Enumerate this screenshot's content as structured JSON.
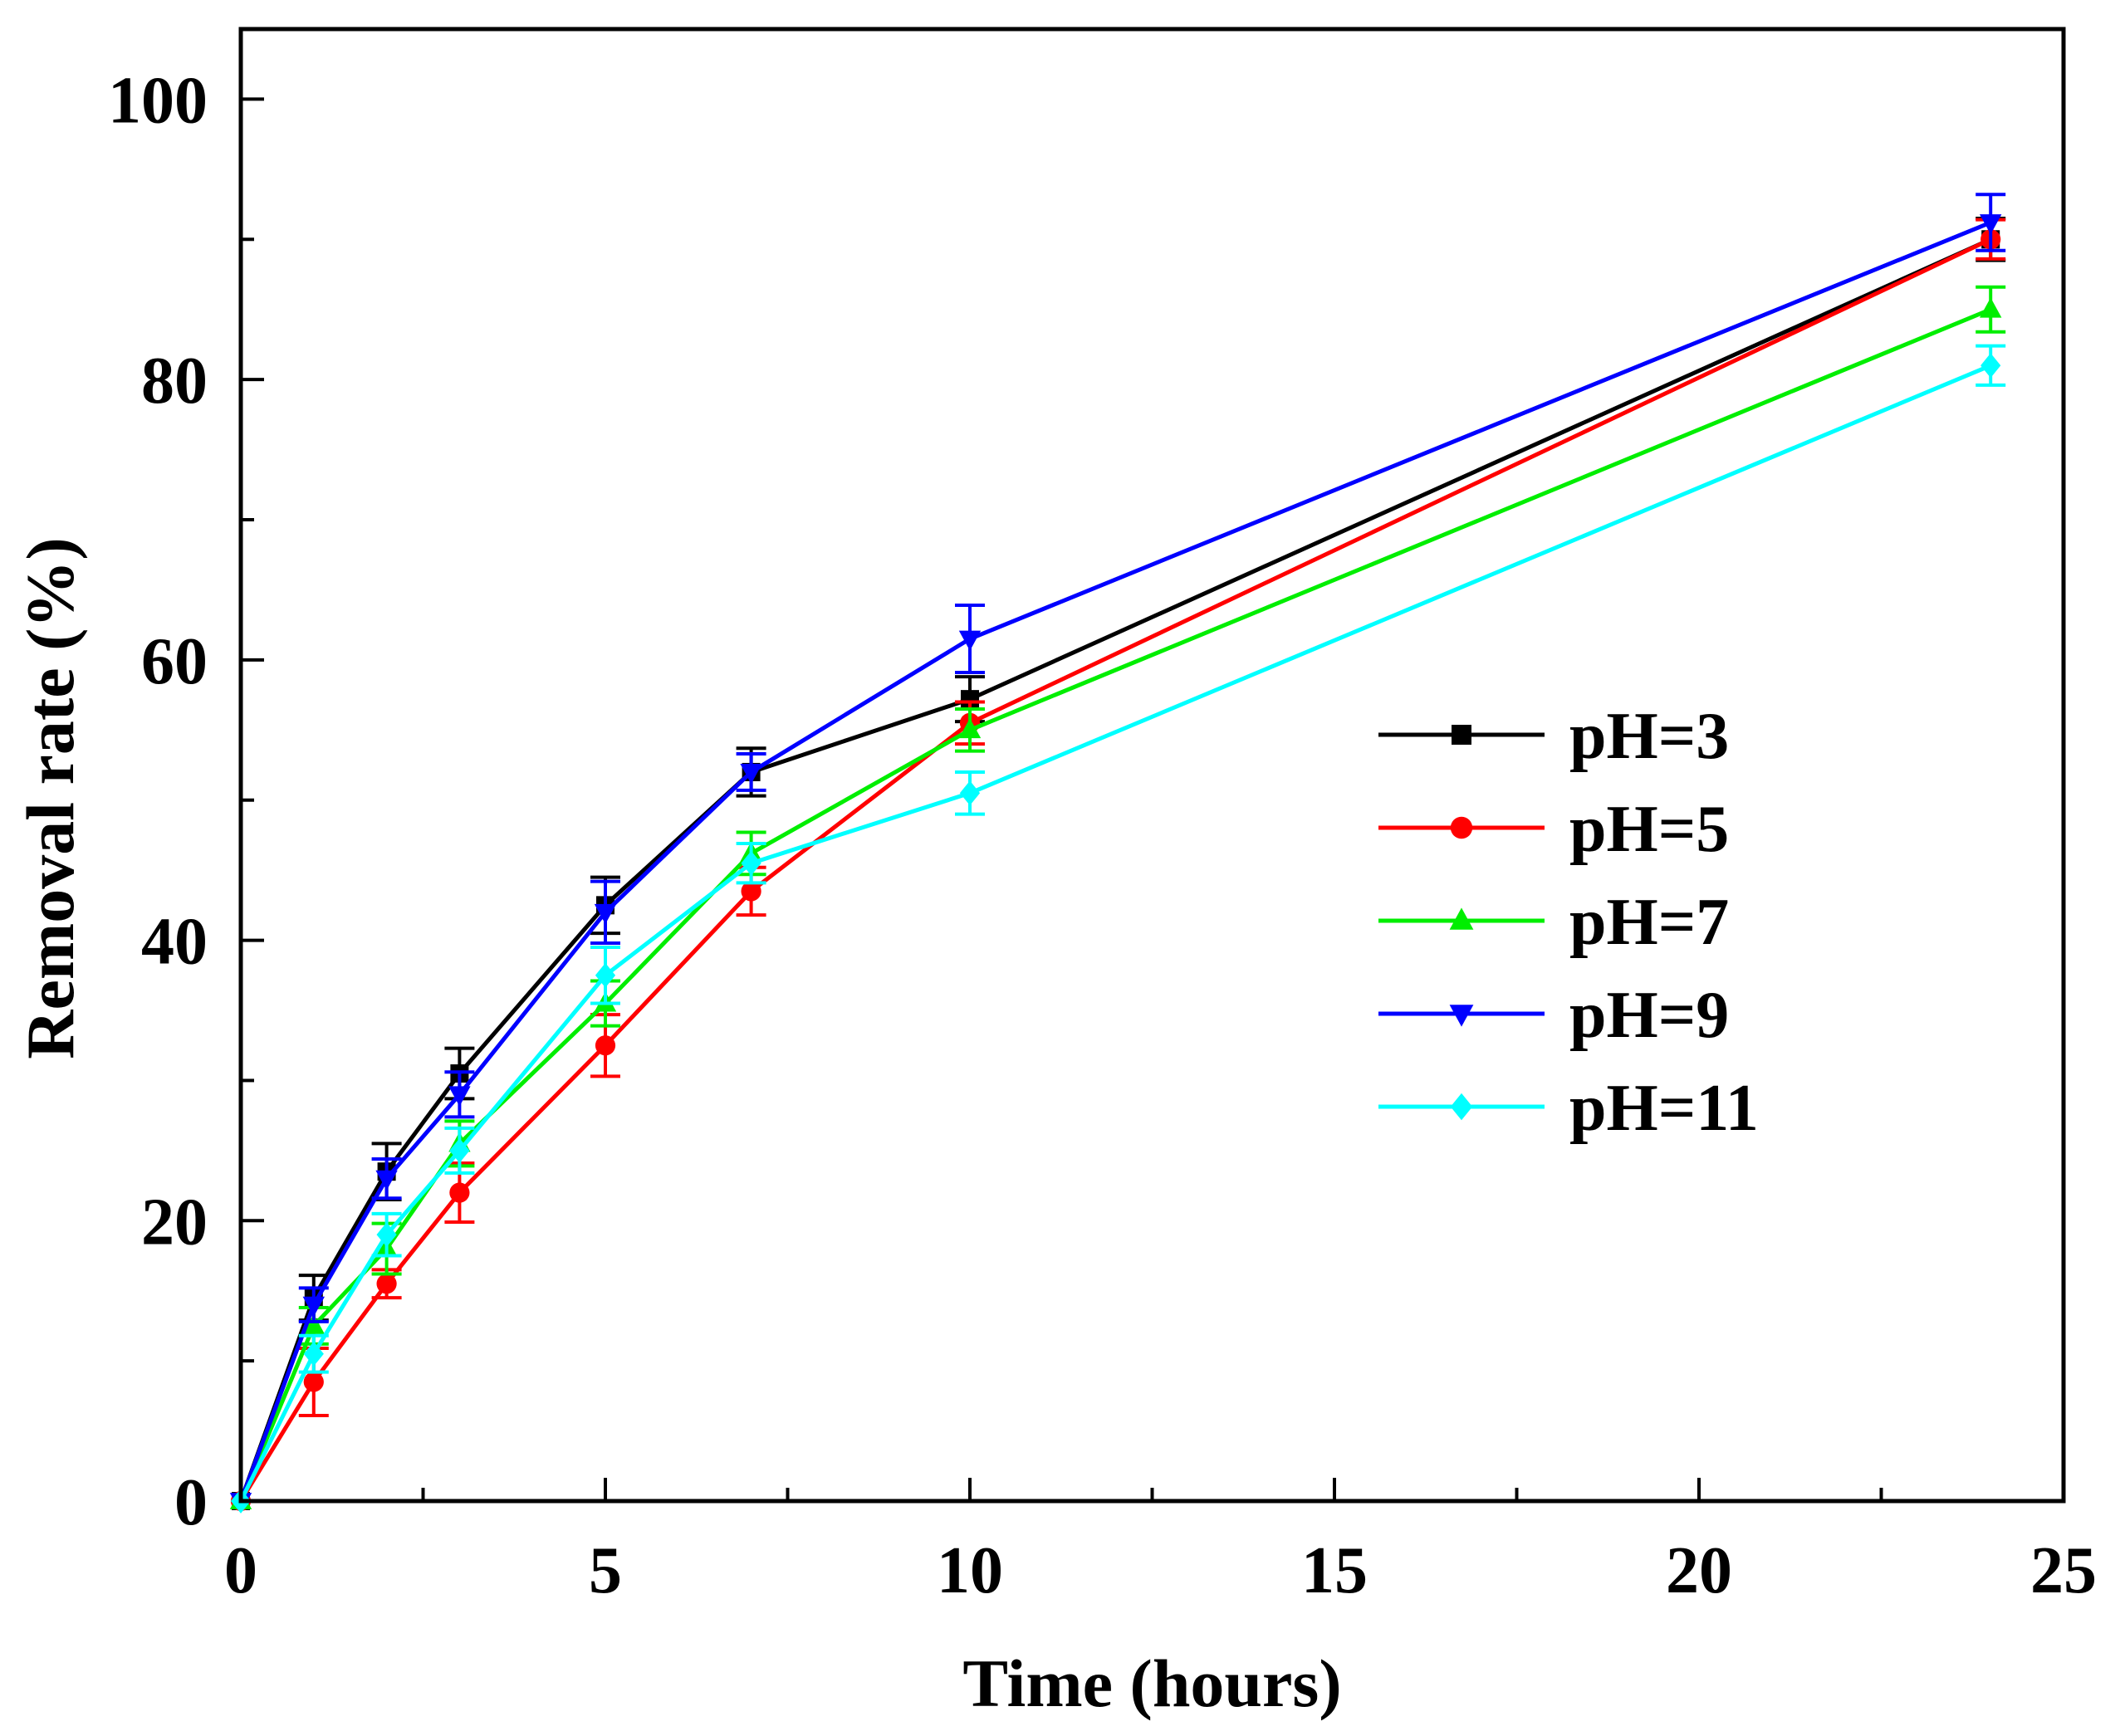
{
  "chart_data": {
    "type": "line",
    "title": "",
    "xlabel": "Time (hours)",
    "ylabel": "Removal rate (%)",
    "xlim": [
      0,
      25
    ],
    "ylim": [
      0,
      105
    ],
    "xticks": [
      0,
      5,
      10,
      15,
      20,
      25
    ],
    "yticks": [
      0,
      20,
      40,
      60,
      80,
      100
    ],
    "x_minor": [
      2.5,
      7.5,
      12.5,
      17.5,
      22.5
    ],
    "y_minor": [
      10,
      30,
      50,
      70,
      90
    ],
    "grid": false,
    "legend_position": "center-right",
    "x": [
      0,
      1,
      2,
      3,
      5,
      7,
      10,
      24
    ],
    "series": [
      {
        "name": "pH=3",
        "color": "#000000",
        "marker": "square",
        "values": [
          0,
          14.5,
          23.5,
          30.5,
          42.5,
          52,
          57.2,
          90
        ],
        "errors": [
          0,
          1.6,
          2.0,
          1.8,
          2.0,
          1.7,
          1.6,
          1.5
        ]
      },
      {
        "name": "pH=5",
        "color": "#ff0000",
        "marker": "circle",
        "values": [
          0,
          8.5,
          15.5,
          22,
          32.5,
          43.5,
          55.5,
          90
        ],
        "errors": [
          0,
          2.4,
          1.0,
          2.1,
          2.2,
          1.7,
          1.5,
          1.4
        ]
      },
      {
        "name": "pH=7",
        "color": "#00ee00",
        "marker": "triangle-up",
        "values": [
          0,
          12.5,
          18,
          25.5,
          35.5,
          46.2,
          55,
          85
        ],
        "errors": [
          0,
          1.3,
          1.8,
          1.6,
          1.6,
          1.5,
          1.5,
          1.6
        ]
      },
      {
        "name": "pH=9",
        "color": "#0000ff",
        "marker": "triangle-down",
        "values": [
          0,
          14,
          23,
          29,
          42,
          52,
          61.5,
          91.2
        ],
        "errors": [
          0,
          1.2,
          1.4,
          1.6,
          2.2,
          1.3,
          2.4,
          2.0
        ]
      },
      {
        "name": "pH=11",
        "color": "#00ffff",
        "marker": "diamond",
        "values": [
          0,
          10.5,
          19,
          25,
          37.5,
          45.5,
          50.5,
          81
        ],
        "errors": [
          0,
          1.3,
          1.5,
          1.6,
          2.0,
          1.4,
          1.5,
          1.4
        ]
      }
    ]
  }
}
